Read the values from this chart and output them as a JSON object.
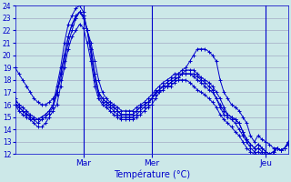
{
  "xlabel": "Température (°C)",
  "bg_color": "#cce8e8",
  "grid_color": "#9999bb",
  "line_color": "#0000cc",
  "ylim": [
    12,
    24
  ],
  "yticks": [
    12,
    13,
    14,
    15,
    16,
    17,
    18,
    19,
    20,
    21,
    22,
    23,
    24
  ],
  "xlim": [
    0,
    72
  ],
  "xtick_positions": [
    18,
    36,
    66
  ],
  "xtick_labels": [
    "Mar",
    "Mer",
    "Jeu"
  ],
  "n_points": 73,
  "series": [
    [
      19.0,
      18.5,
      18.0,
      17.5,
      17.0,
      16.5,
      16.2,
      16.0,
      16.0,
      16.2,
      16.5,
      17.0,
      18.0,
      19.5,
      21.0,
      22.0,
      23.0,
      23.5,
      23.0,
      22.0,
      21.0,
      19.5,
      18.0,
      17.0,
      16.5,
      16.2,
      16.0,
      15.8,
      15.5,
      15.5,
      15.5,
      15.5,
      15.8,
      16.0,
      16.2,
      16.5,
      16.8,
      17.2,
      17.5,
      17.8,
      18.0,
      18.2,
      18.5,
      18.5,
      18.8,
      19.0,
      19.5,
      20.0,
      20.5,
      20.5,
      20.5,
      20.3,
      20.0,
      19.5,
      18.0,
      17.0,
      16.5,
      16.0,
      15.8,
      15.5,
      15.0,
      14.5,
      13.5,
      13.0,
      13.5,
      13.2,
      13.0,
      12.8,
      12.5,
      12.5,
      12.3,
      12.5,
      13.0
    ],
    [
      16.0,
      15.8,
      15.5,
      15.3,
      15.0,
      14.8,
      14.8,
      15.0,
      15.2,
      15.5,
      16.0,
      17.0,
      18.5,
      20.0,
      21.5,
      22.5,
      23.2,
      23.5,
      23.2,
      22.0,
      20.5,
      18.5,
      17.0,
      16.5,
      16.2,
      16.0,
      15.8,
      15.5,
      15.2,
      15.2,
      15.2,
      15.2,
      15.5,
      15.8,
      16.0,
      16.2,
      16.5,
      16.8,
      17.2,
      17.5,
      17.5,
      17.8,
      18.0,
      18.2,
      18.5,
      18.5,
      18.5,
      18.5,
      18.3,
      18.0,
      17.8,
      17.5,
      17.2,
      16.5,
      16.0,
      15.5,
      15.2,
      15.0,
      14.8,
      14.5,
      13.8,
      13.2,
      12.8,
      12.5,
      12.8,
      12.5,
      12.2,
      12.0,
      12.2,
      12.5,
      12.3,
      12.5,
      13.0
    ],
    [
      16.5,
      16.0,
      15.8,
      15.5,
      15.2,
      15.0,
      14.8,
      15.0,
      15.2,
      15.5,
      16.0,
      17.5,
      19.0,
      21.0,
      22.5,
      23.2,
      23.8,
      24.0,
      23.5,
      22.0,
      20.0,
      18.0,
      16.8,
      16.2,
      16.0,
      15.8,
      15.5,
      15.2,
      15.0,
      15.0,
      15.0,
      15.0,
      15.2,
      15.5,
      15.8,
      16.0,
      16.5,
      17.0,
      17.2,
      17.5,
      17.8,
      18.0,
      18.2,
      18.5,
      18.5,
      18.8,
      18.8,
      18.8,
      18.5,
      18.2,
      18.0,
      17.8,
      17.5,
      17.0,
      16.5,
      15.8,
      15.2,
      15.0,
      14.8,
      14.5,
      13.8,
      13.2,
      12.8,
      12.5,
      12.8,
      12.5,
      12.2,
      12.0,
      12.2,
      12.5,
      12.3,
      12.5,
      13.0
    ],
    [
      16.2,
      15.8,
      15.5,
      15.2,
      15.0,
      14.8,
      14.5,
      14.8,
      15.0,
      15.3,
      15.8,
      16.8,
      18.5,
      20.0,
      21.5,
      22.5,
      23.0,
      23.5,
      23.2,
      22.0,
      20.5,
      18.5,
      17.0,
      16.5,
      16.2,
      16.0,
      15.8,
      15.5,
      15.2,
      15.2,
      15.2,
      15.2,
      15.5,
      15.8,
      16.0,
      16.2,
      16.5,
      17.0,
      17.2,
      17.5,
      17.5,
      17.8,
      18.0,
      18.2,
      18.5,
      18.5,
      18.5,
      18.3,
      18.0,
      17.8,
      17.5,
      17.2,
      17.0,
      16.5,
      15.8,
      15.2,
      15.0,
      14.8,
      14.5,
      14.0,
      13.5,
      13.0,
      12.5,
      12.2,
      12.5,
      12.2,
      12.0,
      11.8,
      12.0,
      12.5,
      12.3,
      12.5,
      12.8
    ],
    [
      16.0,
      15.5,
      15.2,
      15.0,
      14.8,
      14.5,
      14.2,
      14.2,
      14.5,
      15.0,
      15.5,
      16.0,
      17.5,
      19.0,
      20.5,
      21.5,
      22.0,
      22.5,
      22.2,
      21.0,
      19.5,
      17.5,
      16.5,
      16.0,
      15.8,
      15.5,
      15.2,
      15.0,
      14.8,
      14.8,
      14.8,
      14.8,
      15.0,
      15.2,
      15.5,
      15.8,
      16.0,
      16.5,
      17.0,
      17.2,
      17.5,
      17.5,
      17.8,
      18.0,
      18.0,
      18.0,
      17.8,
      17.5,
      17.2,
      17.0,
      16.8,
      16.5,
      16.2,
      15.8,
      15.2,
      14.8,
      14.5,
      14.2,
      13.8,
      13.5,
      13.0,
      12.5,
      12.2,
      12.0,
      12.2,
      12.0,
      11.8,
      11.8,
      12.0,
      12.5,
      12.3,
      12.5,
      12.8
    ]
  ]
}
